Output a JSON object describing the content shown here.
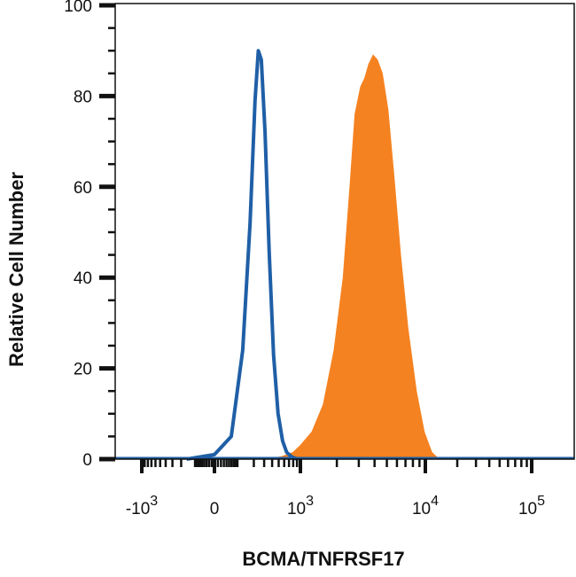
{
  "chart_data": {
    "type": "area",
    "xlabel": "BCMA/TNFRSF17",
    "ylabel": "Relative Cell Number",
    "ylim": [
      0,
      100
    ],
    "x_scale": "biexponential",
    "x_tick_labels": [
      {
        "base": "-10",
        "exp": "3",
        "value": -1000
      },
      {
        "base": "0",
        "exp": "",
        "value": 0
      },
      {
        "base": "10",
        "exp": "3",
        "value": 1000
      },
      {
        "base": "10",
        "exp": "4",
        "value": 10000
      },
      {
        "base": "10",
        "exp": "5",
        "value": 100000
      }
    ],
    "y_ticks": [
      0,
      20,
      40,
      60,
      80,
      100
    ],
    "grid": false,
    "colors": {
      "isotype_outline": "#1f5fa6",
      "sample_fill": "#f58220"
    },
    "series": [
      {
        "style": "outline",
        "color": "#1f5fa6",
        "points": [
          [
            -150,
            0
          ],
          [
            0,
            1
          ],
          [
            60,
            5
          ],
          [
            120,
            24
          ],
          [
            170,
            52
          ],
          [
            210,
            79
          ],
          [
            240,
            90
          ],
          [
            270,
            88
          ],
          [
            310,
            72
          ],
          [
            360,
            46
          ],
          [
            420,
            23
          ],
          [
            490,
            10
          ],
          [
            570,
            4
          ],
          [
            650,
            1.5
          ],
          [
            760,
            0.5
          ],
          [
            900,
            0
          ]
        ]
      },
      {
        "style": "filled",
        "color": "#f58220",
        "points": [
          [
            300,
            0
          ],
          [
            550,
            0.5
          ],
          [
            800,
            1.5
          ],
          [
            1000,
            3
          ],
          [
            1250,
            6
          ],
          [
            1550,
            12
          ],
          [
            1900,
            24
          ],
          [
            2250,
            40
          ],
          [
            2550,
            60
          ],
          [
            2800,
            76
          ],
          [
            3100,
            82
          ],
          [
            3350,
            84
          ],
          [
            3600,
            87
          ],
          [
            3900,
            89
          ],
          [
            4200,
            88
          ],
          [
            4600,
            85
          ],
          [
            5100,
            77
          ],
          [
            5700,
            62
          ],
          [
            6400,
            45
          ],
          [
            7300,
            29
          ],
          [
            8500,
            15
          ],
          [
            9800,
            6
          ],
          [
            11500,
            1.5
          ],
          [
            13000,
            0.3
          ],
          [
            15000,
            0
          ]
        ]
      }
    ]
  }
}
